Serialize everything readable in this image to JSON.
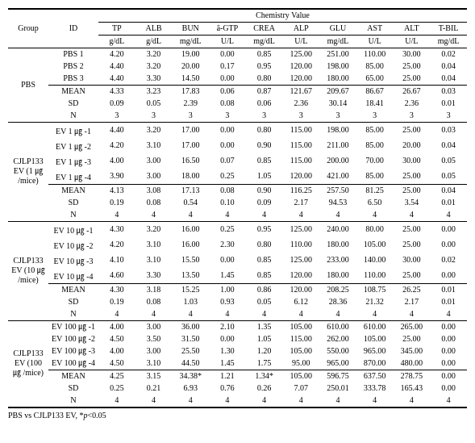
{
  "headers": {
    "group": "Group",
    "id": "ID",
    "parent": "Chemistry Value",
    "cols": [
      "TP",
      "ALB",
      "BUN",
      "ã-GTP",
      "CREA",
      "ALP",
      "GLU",
      "AST",
      "ALT",
      "T-BIL"
    ],
    "units": [
      "g/dL",
      "g/dL",
      "mg/dL",
      "U/L",
      "mg/dL",
      "U/L",
      "mg/dL",
      "U/L",
      "U/L",
      "mg/dL"
    ]
  },
  "groups": [
    {
      "name": "PBS",
      "rows": [
        {
          "id": "PBS 1",
          "v": [
            "4.20",
            "3.20",
            "19.00",
            "0.00",
            "0.85",
            "125.00",
            "251.00",
            "110.00",
            "30.00",
            "0.02"
          ]
        },
        {
          "id": "PBS 2",
          "v": [
            "4.40",
            "3.20",
            "20.00",
            "0.17",
            "0.95",
            "120.00",
            "198.00",
            "85.00",
            "25.00",
            "0.04"
          ]
        },
        {
          "id": "PBS 3",
          "v": [
            "4.40",
            "3.30",
            "14.50",
            "0.00",
            "0.80",
            "120.00",
            "180.00",
            "65.00",
            "25.00",
            "0.04"
          ]
        },
        {
          "id": "MEAN",
          "v": [
            "4.33",
            "3.23",
            "17.83",
            "0.06",
            "0.87",
            "121.67",
            "209.67",
            "86.67",
            "26.67",
            "0.03"
          ]
        },
        {
          "id": "SD",
          "v": [
            "0.09",
            "0.05",
            "2.39",
            "0.08",
            "0.06",
            "2.36",
            "30.14",
            "18.41",
            "2.36",
            "0.01"
          ]
        },
        {
          "id": "N",
          "v": [
            "3",
            "3",
            "3",
            "3",
            "3",
            "3",
            "3",
            "3",
            "3",
            "3"
          ]
        }
      ]
    },
    {
      "name": "CJLP133 EV (1 ㎍ /mice)",
      "rows": [
        {
          "id": "EV 1 ㎍ -1",
          "v": [
            "4.40",
            "3.20",
            "17.00",
            "0.00",
            "0.80",
            "115.00",
            "198.00",
            "85.00",
            "25.00",
            "0.03"
          ]
        },
        {
          "id": "EV 1 ㎍ -2",
          "v": [
            "4.20",
            "3.10",
            "17.00",
            "0.00",
            "0.90",
            "115.00",
            "211.00",
            "85.00",
            "20.00",
            "0.04"
          ]
        },
        {
          "id": "EV 1 ㎍ -3",
          "v": [
            "4.00",
            "3.00",
            "16.50",
            "0.07",
            "0.85",
            "115.00",
            "200.00",
            "70.00",
            "30.00",
            "0.05"
          ]
        },
        {
          "id": "EV 1 ㎍ -4",
          "v": [
            "3.90",
            "3.00",
            "18.00",
            "0.25",
            "1.05",
            "120.00",
            "421.00",
            "85.00",
            "25.00",
            "0.05"
          ]
        },
        {
          "id": "MEAN",
          "v": [
            "4.13",
            "3.08",
            "17.13",
            "0.08",
            "0.90",
            "116.25",
            "257.50",
            "81.25",
            "25.00",
            "0.04"
          ]
        },
        {
          "id": "SD",
          "v": [
            "0.19",
            "0.08",
            "0.54",
            "0.10",
            "0.09",
            "2.17",
            "94.53",
            "6.50",
            "3.54",
            "0.01"
          ]
        },
        {
          "id": "N",
          "v": [
            "4",
            "4",
            "4",
            "4",
            "4",
            "4",
            "4",
            "4",
            "4",
            "4"
          ]
        }
      ]
    },
    {
      "name": "CJLP133 EV (10 ㎍ /mice)",
      "rows": [
        {
          "id": "EV 10 ㎍ -1",
          "v": [
            "4.30",
            "3.20",
            "16.00",
            "0.25",
            "0.95",
            "125.00",
            "240.00",
            "80.00",
            "25.00",
            "0.00"
          ]
        },
        {
          "id": "EV 10 ㎍ -2",
          "v": [
            "4.20",
            "3.10",
            "16.00",
            "2.30",
            "0.80",
            "110.00",
            "180.00",
            "105.00",
            "25.00",
            "0.00"
          ]
        },
        {
          "id": "EV 10 ㎍ -3",
          "v": [
            "4.10",
            "3.10",
            "15.50",
            "0.00",
            "0.85",
            "125.00",
            "233.00",
            "140.00",
            "30.00",
            "0.02"
          ]
        },
        {
          "id": "EV 10 ㎍ -4",
          "v": [
            "4.60",
            "3.30",
            "13.50",
            "1.45",
            "0.85",
            "120.00",
            "180.00",
            "110.00",
            "25.00",
            "0.00"
          ]
        },
        {
          "id": "MEAN",
          "v": [
            "4.30",
            "3.18",
            "15.25",
            "1.00",
            "0.86",
            "120.00",
            "208.25",
            "108.75",
            "26.25",
            "0.01"
          ]
        },
        {
          "id": "SD",
          "v": [
            "0.19",
            "0.08",
            "1.03",
            "0.93",
            "0.05",
            "6.12",
            "28.36",
            "21.32",
            "2.17",
            "0.01"
          ]
        },
        {
          "id": "N",
          "v": [
            "4",
            "4",
            "4",
            "4",
            "4",
            "4",
            "4",
            "4",
            "4",
            "4"
          ]
        }
      ]
    },
    {
      "name": "CJLP133 EV (100 ㎍ /mice)",
      "rows": [
        {
          "id": "EV 100 ㎍ -1",
          "v": [
            "4.00",
            "3.00",
            "36.00",
            "2.10",
            "1.35",
            "105.00",
            "610.00",
            "610.00",
            "265.00",
            "0.00"
          ]
        },
        {
          "id": "EV 100 ㎍ -2",
          "v": [
            "4.50",
            "3.50",
            "31.50",
            "0.00",
            "1.05",
            "115.00",
            "262.00",
            "105.00",
            "25.00",
            "0.00"
          ]
        },
        {
          "id": "EV 100 ㎍ -3",
          "v": [
            "4.00",
            "3.00",
            "25.50",
            "1.30",
            "1.20",
            "105.00",
            "550.00",
            "965.00",
            "345.00",
            "0.00"
          ]
        },
        {
          "id": "EV 100 ㎍ -4",
          "v": [
            "4.50",
            "3.10",
            "44.50",
            "1.45",
            "1.75",
            "95.00",
            "965.00",
            "870.00",
            "480.00",
            "0.00"
          ]
        },
        {
          "id": "MEAN",
          "v": [
            "4.25",
            "3.15",
            "34.38*",
            "1.21",
            "1.34*",
            "105.00",
            "596.75",
            "637.50",
            "278.75",
            "0.00"
          ]
        },
        {
          "id": "SD",
          "v": [
            "0.25",
            "0.21",
            "6.93",
            "0.76",
            "0.26",
            "7.07",
            "250.01",
            "333.78",
            "165.43",
            "0.00"
          ]
        },
        {
          "id": "N",
          "v": [
            "4",
            "4",
            "4",
            "4",
            "4",
            "4",
            "4",
            "4",
            "4",
            "4"
          ]
        }
      ]
    }
  ],
  "footnote_plain": "PBS vs CJLP133 EV, *",
  "footnote_ital": "p",
  "footnote_tail": "<0.05"
}
